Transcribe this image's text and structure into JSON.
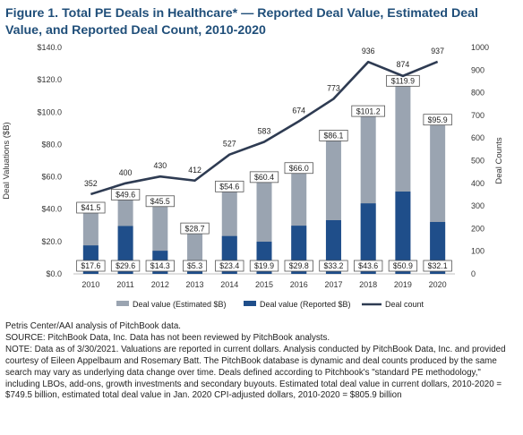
{
  "title": "Figure 1. Total PE Deals in Healthcare* — Reported Deal Value, Estimated Deal Value, and Reported Deal Count, 2010-2020",
  "notes": {
    "source1": "Petris Center/AAI analysis of PitchBook data.",
    "source2": "SOURCE: PitchBook Data, Inc. Data has not been reviewed by PitchBook analysts.",
    "note": "NOTE: Data as of 3/30/2021. Valuations are reported in current dollars. Analysis conducted by PitchBook Data, Inc. and provided courtesy of Eileen Appelbaum and Rosemary Batt. The PitchBook database is dynamic and deal counts produced by the same search may vary as underlying data change over time. Deals defined according to Pitchbook's \"standard PE methodology,\" including LBOs, add-ons, growth investments and secondary buyouts. Estimated total deal value in current dollars, 2010-2020 = $749.5 billion, estimated total deal value in Jan. 2020 CPI-adjusted dollars, 2010-2020 = $805.9 billion"
  },
  "chart_data": {
    "type": "bar",
    "categories": [
      "2010",
      "2011",
      "2012",
      "2013",
      "2014",
      "2015",
      "2016",
      "2017",
      "2018",
      "2019",
      "2020"
    ],
    "series": [
      {
        "name": "Deal value (Estimated $B)",
        "kind": "bar",
        "axis": "left",
        "color": "#9aa4b1",
        "values": [
          41.5,
          49.6,
          45.5,
          28.7,
          54.6,
          60.4,
          66.0,
          86.1,
          101.2,
          119.9,
          95.9
        ],
        "labels": [
          "$41.5",
          "$49.6",
          "$45.5",
          "$28.7",
          "$54.6",
          "$60.4",
          "$66.0",
          "$86.1",
          "$101.2",
          "$119.9",
          "$95.9"
        ]
      },
      {
        "name": "Deal value (Reported $B)",
        "kind": "bar",
        "axis": "left",
        "color": "#1f4e8a",
        "values": [
          17.6,
          29.6,
          14.3,
          5.3,
          23.4,
          19.9,
          29.8,
          33.2,
          43.6,
          50.9,
          32.1
        ],
        "labels": [
          "$17.6",
          "$29.6",
          "$14.3",
          "$5.3",
          "$23.4",
          "$19.9",
          "$29.8",
          "$33.2",
          "$43.6",
          "$50.9",
          "$32.1"
        ]
      },
      {
        "name": "Deal count",
        "kind": "line",
        "axis": "right",
        "color": "#2e3b52",
        "values": [
          352,
          400,
          430,
          412,
          527,
          583,
          674,
          773,
          936,
          874,
          937
        ],
        "labels": [
          "352",
          "400",
          "430",
          "412",
          "527",
          "583",
          "674",
          "773",
          "936",
          "874",
          "937"
        ]
      }
    ],
    "ylabel": "Deal Valuations ($B)",
    "y2label": "Deal Counts",
    "ylim": [
      0,
      140
    ],
    "y2lim": [
      0,
      1000
    ],
    "yticks": [
      "$0.0",
      "$20.0",
      "$40.0",
      "$60.0",
      "$80.0",
      "$100.0",
      "$120.0",
      "$140.0"
    ],
    "y2ticks": [
      "0",
      "100",
      "200",
      "300",
      "400",
      "500",
      "600",
      "700",
      "800",
      "900",
      "1000"
    ],
    "legend": {
      "position": "bottom"
    },
    "grid": false
  }
}
